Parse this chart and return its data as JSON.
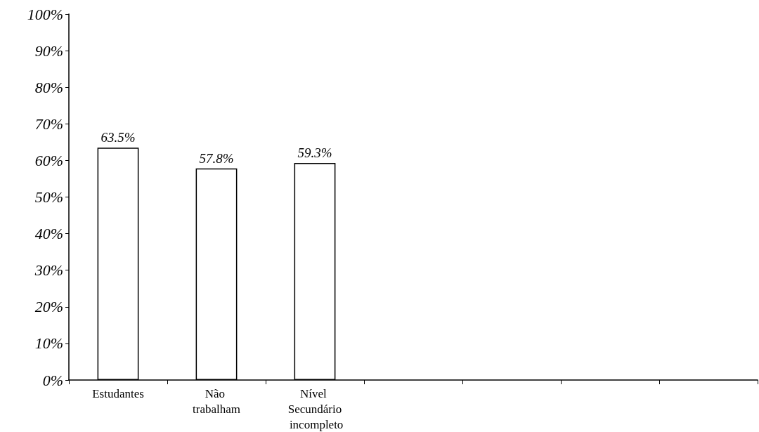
{
  "chart_data": {
    "type": "bar",
    "categories": [
      "Estudantes",
      "Não trabalham",
      "Nível Secundário incompleto",
      null,
      null,
      null,
      null
    ],
    "values": [
      63.5,
      57.8,
      59.3,
      null,
      null,
      null,
      null
    ],
    "value_labels": [
      "63.5%",
      "57.8%",
      "59.3%",
      null,
      null,
      null,
      null
    ],
    "color": "#ffffff",
    "ylim": [
      0,
      100
    ],
    "yticks": [
      {
        "value": 0,
        "label": "0%"
      },
      {
        "value": 10,
        "label": "10%"
      },
      {
        "value": 20,
        "label": "20%"
      },
      {
        "value": 30,
        "label": "30%"
      },
      {
        "value": 40,
        "label": "40%"
      },
      {
        "value": 50,
        "label": "50%"
      },
      {
        "value": 60,
        "label": "60%"
      },
      {
        "value": 70,
        "label": "70%"
      },
      {
        "value": 80,
        "label": "80%"
      },
      {
        "value": 90,
        "label": "90%"
      },
      {
        "value": 100,
        "label": "100%"
      }
    ],
    "grid": false
  }
}
